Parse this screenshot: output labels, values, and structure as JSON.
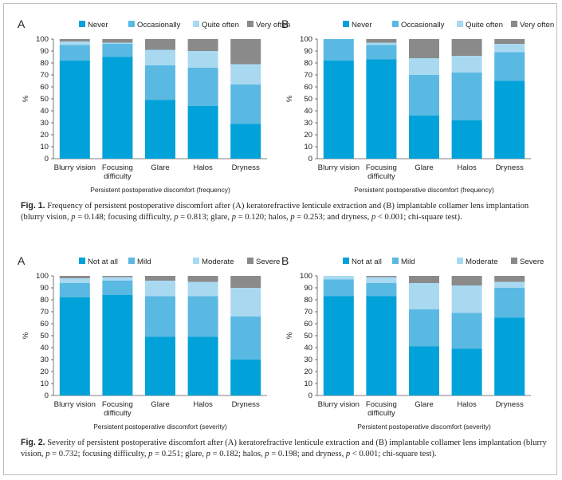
{
  "colors": {
    "bar_1": "#00a2d9",
    "bar_2": "#5ab9e2",
    "bar_3": "#a9d9f1",
    "bar_4": "#8a8a8a",
    "text": "#222222",
    "axis": "#555555"
  },
  "chart_data": [
    {
      "type": "bar",
      "stacked": true,
      "panel_label": "A",
      "categories": [
        "Blurry vision",
        "Focusing\ndifficulty",
        "Glare",
        "Halos",
        "Dryness"
      ],
      "series": [
        {
          "name": "Never",
          "values": [
            82,
            85,
            49,
            44,
            29
          ]
        },
        {
          "name": "Occasionally",
          "values": [
            13,
            11,
            29,
            32,
            33
          ]
        },
        {
          "name": "Quite often",
          "values": [
            3,
            1,
            13,
            14,
            17
          ]
        },
        {
          "name": "Very often",
          "values": [
            2,
            3,
            9,
            10,
            21
          ]
        }
      ],
      "ylabel": "%",
      "xlabel": "Persistent postoperative discomfort (frequency)",
      "ylim": [
        0,
        100
      ],
      "yticks": [
        "0",
        "10",
        "20",
        "30",
        "40",
        "50",
        "60",
        "70",
        "80",
        "90",
        "100"
      ],
      "legend": "top",
      "grid": false
    },
    {
      "type": "bar",
      "stacked": true,
      "panel_label": "B",
      "categories": [
        "Blurry vision",
        "Focusing\ndifficulty",
        "Glare",
        "Halos",
        "Dryness"
      ],
      "series": [
        {
          "name": "Never",
          "values": [
            82,
            83,
            36,
            32,
            65
          ]
        },
        {
          "name": "Occasionally",
          "values": [
            18,
            12,
            34,
            40,
            24
          ]
        },
        {
          "name": "Quite often",
          "values": [
            0,
            2,
            14,
            14,
            7
          ]
        },
        {
          "name": "Very often",
          "values": [
            0,
            3,
            16,
            14,
            4
          ]
        }
      ],
      "ylabel": "%",
      "xlabel": "Persistent postoperative discomfort (frequency)",
      "ylim": [
        0,
        100
      ],
      "yticks": [
        "0",
        "10",
        "20",
        "30",
        "40",
        "50",
        "60",
        "70",
        "80",
        "90",
        "100"
      ],
      "legend": "top",
      "grid": false
    },
    {
      "type": "bar",
      "stacked": true,
      "panel_label": "A",
      "categories": [
        "Blurry vision",
        "Focusing\ndifficulty",
        "Glare",
        "Halos",
        "Dryness"
      ],
      "series": [
        {
          "name": "Not at all",
          "values": [
            82,
            84,
            49,
            49,
            30
          ]
        },
        {
          "name": "Mild",
          "values": [
            12,
            12,
            34,
            34,
            36
          ]
        },
        {
          "name": "Moderate",
          "values": [
            4,
            3,
            13,
            12,
            24
          ]
        },
        {
          "name": "Severe",
          "values": [
            2,
            1,
            4,
            5,
            10
          ]
        }
      ],
      "ylabel": "%",
      "xlabel": "Persistent postoperative discomfort (severity)",
      "ylim": [
        0,
        100
      ],
      "yticks": [
        "0",
        "10",
        "20",
        "30",
        "40",
        "50",
        "60",
        "70",
        "80",
        "90",
        "100"
      ],
      "legend": "top",
      "grid": false
    },
    {
      "type": "bar",
      "stacked": true,
      "panel_label": "B",
      "categories": [
        "Blurry vision",
        "Focusing\ndifficulty",
        "Glare",
        "Halos",
        "Dryness"
      ],
      "series": [
        {
          "name": "Not at all",
          "values": [
            83,
            83,
            41,
            39,
            65
          ]
        },
        {
          "name": "Mild",
          "values": [
            14,
            11,
            31,
            30,
            25
          ]
        },
        {
          "name": "Moderate",
          "values": [
            3,
            5,
            22,
            23,
            5
          ]
        },
        {
          "name": "Severe",
          "values": [
            0,
            1,
            6,
            8,
            5
          ]
        }
      ],
      "ylabel": "%",
      "xlabel": "Persistent postoperative discomfort (severity)",
      "ylim": [
        0,
        100
      ],
      "yticks": [
        "0",
        "10",
        "20",
        "30",
        "40",
        "50",
        "60",
        "70",
        "80",
        "90",
        "100"
      ],
      "legend": "top",
      "grid": false
    }
  ],
  "captions": {
    "fig1": {
      "label": "Fig. 1.",
      "parts": [
        " Frequency of persistent postoperative discomfort after (A) keratorefractive lenticule extraction and (B) implantable collamer lens implantation (blurry vision, ",
        "p",
        " = 0.148; focusing difficulty, ",
        "p",
        " = 0.813; glare, ",
        "p",
        " = 0.120; halos, ",
        "p",
        " = 0.253; and dryness, ",
        "p",
        " < 0.001; chi-square test)."
      ]
    },
    "fig2": {
      "label": "Fig. 2.",
      "parts": [
        " Severity of persistent postoperative discomfort after (A) keratorefractive lenticule extraction and (B) implantable collamer lens implantation (blurry vision, ",
        "p",
        " = 0.732; focusing difficulty, ",
        "p",
        " = 0.251; glare, ",
        "p",
        " = 0.182; halos, ",
        "p",
        " = 0.198; and dryness, ",
        "p",
        " < 0.001; chi-square test)."
      ]
    }
  }
}
